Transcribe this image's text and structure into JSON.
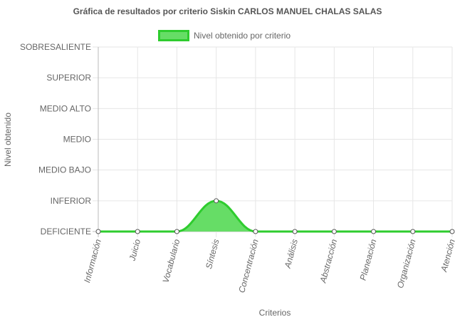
{
  "chart_data": {
    "type": "area",
    "title": "Gráfica de resultados por criterio Siskin CARLOS MANUEL CHALAS SALAS",
    "legend": {
      "label": "Nivel obtenido por criterio",
      "placement": "top"
    },
    "xlabel": "Criterios",
    "ylabel": "Nivel obtenido",
    "y_levels": [
      "DEFICIENTE",
      "INFERIOR",
      "MEDIO BAJO",
      "MEDIO",
      "MEDIO ALTO",
      "SUPERIOR",
      "SOBRESALIENTE"
    ],
    "categories": [
      "Información",
      "Juicio",
      "Vocabulario",
      "Síntesis",
      "Concentración",
      "Análisis",
      "Abstracción",
      "Planeación",
      "Organización",
      "Atención"
    ],
    "series": [
      {
        "name": "Nivel obtenido por criterio",
        "values": [
          0,
          0,
          0,
          1,
          0,
          0,
          0,
          0,
          0,
          0
        ]
      }
    ],
    "ylim": [
      0,
      6
    ],
    "grid": true,
    "colors": {
      "line": "#2ecc2e",
      "fill": "#66dd66",
      "grid": "#e6e6e6",
      "point_fill": "#ffffff",
      "point_stroke": "#555555"
    }
  }
}
